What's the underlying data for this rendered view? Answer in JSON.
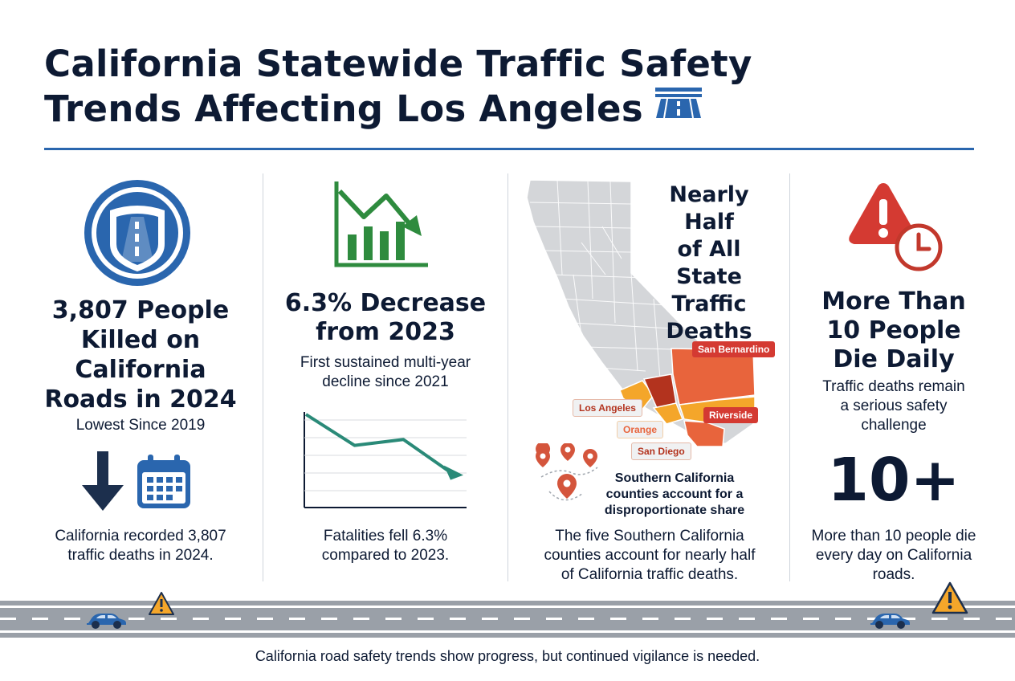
{
  "title": {
    "line1": "California Statewide Traffic Safety",
    "line2": "Trends Affecting Los Angeles"
  },
  "panel1": {
    "headline": [
      "3,807 People",
      "Killed on",
      "California",
      "Roads in 2024"
    ],
    "subhead": "Lowest Since 2019",
    "body": [
      "California recorded 3,807",
      "traffic deaths in 2024."
    ]
  },
  "panel2": {
    "headline": [
      "6.3% Decrease",
      "from 2023"
    ],
    "subhead": [
      "First sustained multi-year",
      "decline since 2021"
    ],
    "body": [
      "Fatalities fell 6.3%",
      "compared to 2023."
    ],
    "trend_line": [
      1.0,
      0.58,
      0.66,
      0.2
    ]
  },
  "panel3": {
    "headline": [
      "Nearly Half",
      "of All State",
      "Traffic",
      "Deaths"
    ],
    "counties": [
      "San Bernardino",
      "Los Angeles",
      "Riverside",
      "Orange",
      "San Diego"
    ],
    "callout": [
      "Southern California",
      "counties account for a",
      "disproportionate share"
    ],
    "body": [
      "The five Southern California",
      "counties account for nearly half",
      "of California traffic deaths."
    ]
  },
  "panel4": {
    "headline": [
      "More Than",
      "10 People",
      "Die Daily"
    ],
    "subhead": [
      "Traffic deaths remain",
      "a serious safety",
      "challenge"
    ],
    "stat": "10+",
    "body": [
      "More than 10 people die",
      "every day on California",
      "roads."
    ]
  },
  "footer": "California road safety trends show progress, but continued vigilance is needed.",
  "colors": {
    "navy": "#0d1a33",
    "blue": "#2a66ae",
    "green": "#2e8b3e",
    "teal": "#2a8a78",
    "red": "#d43a32",
    "orange": "#e8643c",
    "amber": "#f4a62a"
  },
  "icons": [
    "highway-icon",
    "road-badge-icon",
    "down-arrow-icon",
    "calendar-icon",
    "declining-chart-icon",
    "map-pin-icon",
    "warning-icon",
    "clock-icon",
    "car-icon"
  ]
}
